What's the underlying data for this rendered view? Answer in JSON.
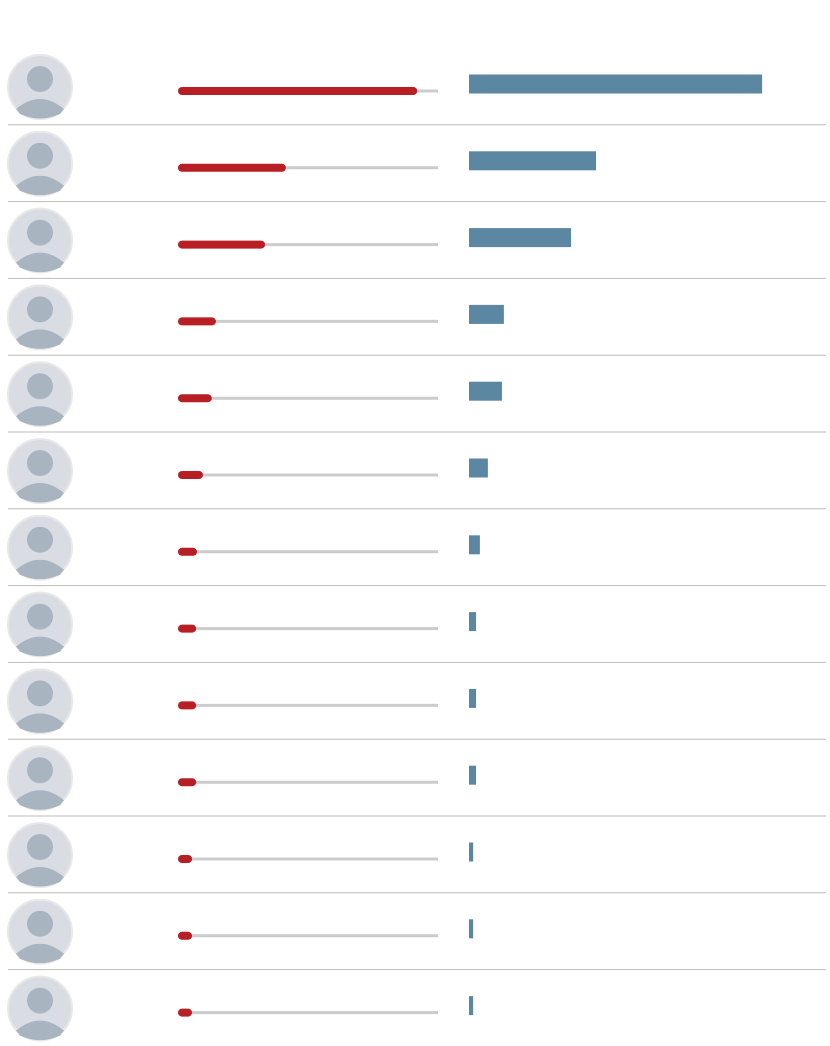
{
  "chart_data": {
    "type": "bar",
    "xlim": [
      0,
      100
    ],
    "series": [
      {
        "color": "#b71f25",
        "values": [
          92,
          41.5,
          33.5,
          14.6,
          13,
          9.6,
          7.3,
          7,
          7,
          7,
          5.4,
          5.4,
          5.4
        ]
      },
      {
        "color": "#5b87a3",
        "values": [
          91.6,
          39.7,
          31.9,
          10.9,
          10.3,
          5.9,
          3.4,
          2.2,
          2.2,
          2.2,
          1.3,
          1.3,
          1.3
        ]
      }
    ]
  }
}
